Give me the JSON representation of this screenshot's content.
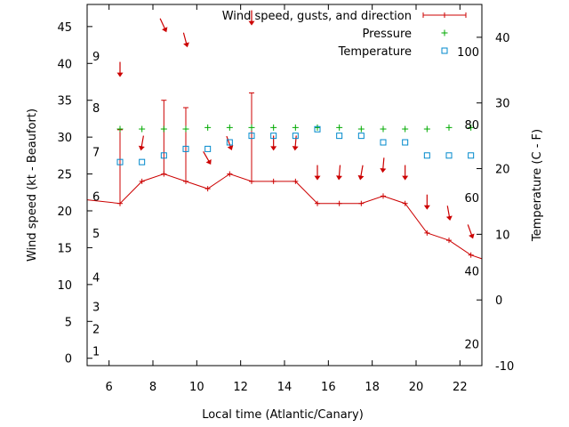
{
  "chart_data": {
    "type": "line",
    "xlabel": "Local time (Atlantic/Canary)",
    "ylabel_left": "Wind speed (kt - Beaufort)",
    "ylabel_right": "Temperature (C - F)",
    "xlim": [
      5,
      23
    ],
    "ylim_left": [
      -1,
      48
    ],
    "ylim_right": [
      -10,
      45
    ],
    "x_ticks": [
      6,
      8,
      10,
      12,
      14,
      16,
      18,
      20,
      22
    ],
    "y_left_ticks": [
      0,
      5,
      10,
      15,
      20,
      25,
      30,
      35,
      40,
      45
    ],
    "y_right_ticks": [
      -10,
      0,
      10,
      20,
      30,
      40
    ],
    "beaufort_scale": [
      {
        "label": "1",
        "kt": 1
      },
      {
        "label": "2",
        "kt": 4
      },
      {
        "label": "3",
        "kt": 7
      },
      {
        "label": "4",
        "kt": 11
      },
      {
        "label": "5",
        "kt": 17
      },
      {
        "label": "6",
        "kt": 22
      },
      {
        "label": "7",
        "kt": 28
      },
      {
        "label": "8",
        "kt": 34
      },
      {
        "label": "9",
        "kt": 41
      }
    ],
    "fahrenheit_scale": [
      {
        "label": "20",
        "celsius": -6.7
      },
      {
        "label": "40",
        "celsius": 4.4
      },
      {
        "label": "60",
        "celsius": 15.6
      },
      {
        "label": "80",
        "celsius": 26.7
      },
      {
        "label": "100",
        "celsius": 37.8
      }
    ],
    "legend_position": "top-right",
    "series": [
      {
        "name": "Wind speed, gusts, and direction",
        "color": "#cc0000",
        "x": [
          5,
          6.5,
          7.5,
          8.5,
          9.5,
          10.5,
          11.5,
          12.5,
          13.5,
          14.5,
          15.5,
          16.5,
          17.5,
          18.5,
          19.5,
          20.5,
          21.5,
          22.5,
          23
        ],
        "values": [
          21.5,
          21,
          24,
          25,
          24,
          23,
          25,
          24,
          24,
          24,
          21,
          21,
          21,
          22,
          21,
          17,
          16,
          14,
          13.5
        ],
        "gusts": [
          null,
          31,
          null,
          35,
          34,
          null,
          null,
          36,
          null,
          null,
          null,
          null,
          null,
          null,
          null,
          null,
          null,
          null,
          null
        ]
      },
      {
        "name": "Pressure",
        "color": "#00aa00",
        "x": [
          6.5,
          7.5,
          8.5,
          9.5,
          10.5,
          11.5,
          12.5,
          13.5,
          14.5,
          15.5,
          16.5,
          17.5,
          18.5,
          19.5,
          20.5,
          21.5,
          22.5
        ],
        "values": [
          31.1,
          31.1,
          31.1,
          31.1,
          31.3,
          31.3,
          31.3,
          31.3,
          31.3,
          31.3,
          31.3,
          31.1,
          31.1,
          31.1,
          31.1,
          31.3,
          31.3
        ]
      },
      {
        "name": "Temperature",
        "color": "#0088cc",
        "x": [
          6.5,
          7.5,
          8.5,
          9.5,
          10.5,
          11.5,
          12.5,
          13.5,
          14.5,
          15.5,
          16.5,
          17.5,
          18.5,
          19.5,
          20.5,
          21.5,
          22.5
        ],
        "values": [
          21,
          21,
          22,
          23,
          23,
          24,
          25,
          25,
          25,
          26,
          25,
          25,
          24,
          24,
          22,
          22,
          22
        ]
      }
    ],
    "wind_direction_arrows": [
      {
        "x": 6.5,
        "kt": 39,
        "angle": 0
      },
      {
        "x": 7.5,
        "kt": 29,
        "angle": 10
      },
      {
        "x": 8.5,
        "kt": 45,
        "angle": -25
      },
      {
        "x": 9.5,
        "kt": 43,
        "angle": -15
      },
      {
        "x": 10.5,
        "kt": 27,
        "angle": -30
      },
      {
        "x": 11.5,
        "kt": 29,
        "angle": -20
      },
      {
        "x": 12.5,
        "kt": 46,
        "angle": 0
      },
      {
        "x": 13.5,
        "kt": 29,
        "angle": 0
      },
      {
        "x": 14.5,
        "kt": 29,
        "angle": 5
      },
      {
        "x": 15.5,
        "kt": 25,
        "angle": 0
      },
      {
        "x": 16.5,
        "kt": 25,
        "angle": 5
      },
      {
        "x": 17.5,
        "kt": 25,
        "angle": 10
      },
      {
        "x": 18.5,
        "kt": 26,
        "angle": 5
      },
      {
        "x": 19.5,
        "kt": 25,
        "angle": 0
      },
      {
        "x": 20.5,
        "kt": 21,
        "angle": 0
      },
      {
        "x": 21.5,
        "kt": 19.5,
        "angle": -10
      },
      {
        "x": 22.5,
        "kt": 17,
        "angle": -20
      }
    ]
  }
}
